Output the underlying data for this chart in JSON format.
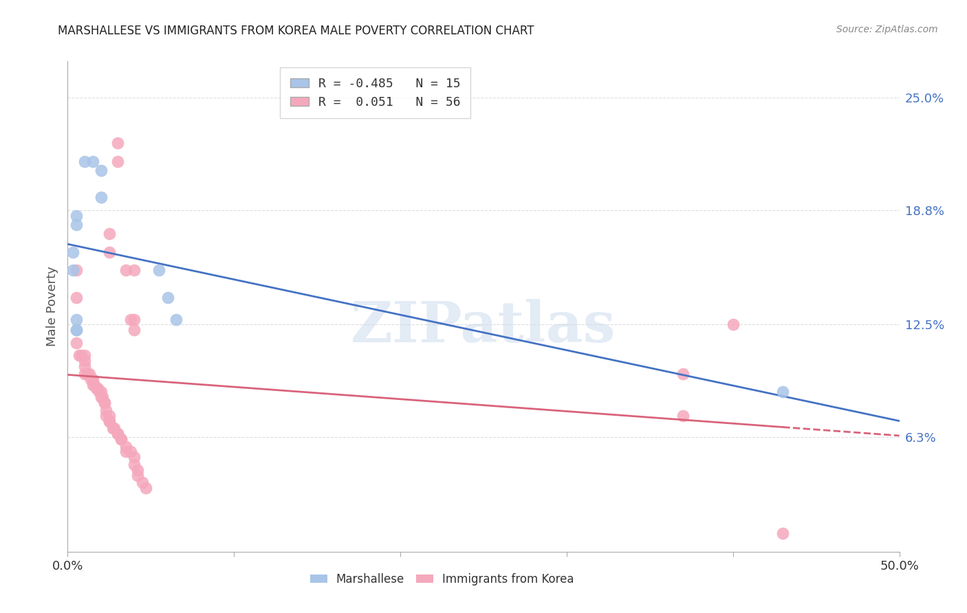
{
  "title": "MARSHALLESE VS IMMIGRANTS FROM KOREA MALE POVERTY CORRELATION CHART",
  "source": "Source: ZipAtlas.com",
  "ylabel": "Male Poverty",
  "ytick_labels": [
    "25.0%",
    "18.8%",
    "12.5%",
    "6.3%"
  ],
  "ytick_values": [
    0.25,
    0.188,
    0.125,
    0.063
  ],
  "xlim": [
    0.0,
    0.5
  ],
  "ylim": [
    0.0,
    0.27
  ],
  "legend_blue_r": "-0.485",
  "legend_blue_n": "15",
  "legend_pink_r": "0.051",
  "legend_pink_n": "56",
  "blue_color": "#a8c4e8",
  "pink_color": "#f5a8bc",
  "trend_blue": "#4472c4",
  "trend_pink": "#d9637a",
  "watermark": "ZIPatlas",
  "marshallese_points": [
    [
      0.01,
      0.215
    ],
    [
      0.015,
      0.215
    ],
    [
      0.02,
      0.21
    ],
    [
      0.02,
      0.195
    ],
    [
      0.005,
      0.185
    ],
    [
      0.005,
      0.18
    ],
    [
      0.003,
      0.165
    ],
    [
      0.003,
      0.155
    ],
    [
      0.005,
      0.128
    ],
    [
      0.005,
      0.122
    ],
    [
      0.005,
      0.122
    ],
    [
      0.055,
      0.155
    ],
    [
      0.06,
      0.14
    ],
    [
      0.065,
      0.128
    ],
    [
      0.43,
      0.088
    ]
  ],
  "korea_points": [
    [
      0.005,
      0.155
    ],
    [
      0.005,
      0.14
    ],
    [
      0.03,
      0.225
    ],
    [
      0.03,
      0.215
    ],
    [
      0.025,
      0.175
    ],
    [
      0.025,
      0.165
    ],
    [
      0.035,
      0.155
    ],
    [
      0.04,
      0.155
    ],
    [
      0.038,
      0.128
    ],
    [
      0.04,
      0.128
    ],
    [
      0.04,
      0.122
    ],
    [
      0.005,
      0.115
    ],
    [
      0.007,
      0.108
    ],
    [
      0.008,
      0.108
    ],
    [
      0.01,
      0.108
    ],
    [
      0.01,
      0.105
    ],
    [
      0.01,
      0.102
    ],
    [
      0.01,
      0.098
    ],
    [
      0.012,
      0.098
    ],
    [
      0.013,
      0.098
    ],
    [
      0.014,
      0.095
    ],
    [
      0.015,
      0.095
    ],
    [
      0.015,
      0.092
    ],
    [
      0.016,
      0.092
    ],
    [
      0.017,
      0.09
    ],
    [
      0.018,
      0.09
    ],
    [
      0.019,
      0.088
    ],
    [
      0.02,
      0.088
    ],
    [
      0.02,
      0.085
    ],
    [
      0.021,
      0.085
    ],
    [
      0.022,
      0.082
    ],
    [
      0.022,
      0.082
    ],
    [
      0.023,
      0.078
    ],
    [
      0.023,
      0.075
    ],
    [
      0.025,
      0.075
    ],
    [
      0.025,
      0.072
    ],
    [
      0.025,
      0.072
    ],
    [
      0.027,
      0.068
    ],
    [
      0.028,
      0.068
    ],
    [
      0.03,
      0.065
    ],
    [
      0.03,
      0.065
    ],
    [
      0.032,
      0.062
    ],
    [
      0.032,
      0.062
    ],
    [
      0.035,
      0.058
    ],
    [
      0.035,
      0.055
    ],
    [
      0.038,
      0.055
    ],
    [
      0.04,
      0.052
    ],
    [
      0.04,
      0.048
    ],
    [
      0.042,
      0.045
    ],
    [
      0.042,
      0.042
    ],
    [
      0.045,
      0.038
    ],
    [
      0.047,
      0.035
    ],
    [
      0.37,
      0.098
    ],
    [
      0.37,
      0.075
    ],
    [
      0.4,
      0.125
    ],
    [
      0.43,
      0.01
    ]
  ]
}
